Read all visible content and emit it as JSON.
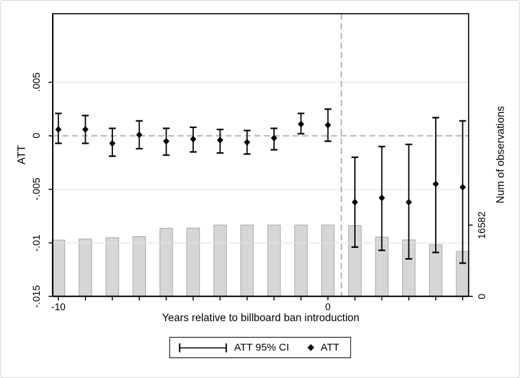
{
  "chart_data": {
    "type": "combo",
    "title": "",
    "xlabel": "Years relative to billboard ban introduction",
    "ylabel_left": "ATT",
    "ylabel_right": "Num of observations",
    "x": [
      -10,
      -9,
      -8,
      -7,
      -6,
      -5,
      -4,
      -3,
      -2,
      -1,
      0,
      1,
      2,
      3,
      4,
      5
    ],
    "series": [
      {
        "name": "ATT",
        "type": "scatter",
        "marker": "diamond",
        "axis": "left",
        "values": [
          0.0006,
          0.0006,
          -0.0007,
          0.0001,
          -0.0005,
          -0.0003,
          -0.0004,
          -0.0006,
          -0.0002,
          0.0011,
          0.001,
          -0.0062,
          -0.0058,
          -0.0062,
          -0.0045,
          -0.0048
        ]
      },
      {
        "name": "ATT 95% CI",
        "type": "errorbar",
        "axis": "left",
        "low": [
          -0.0007,
          -0.0007,
          -0.0019,
          -0.0012,
          -0.0018,
          -0.0015,
          -0.0016,
          -0.0017,
          -0.0013,
          0.0002,
          -0.0005,
          -0.0104,
          -0.0107,
          -0.0115,
          -0.0109,
          -0.0119
        ],
        "high": [
          0.0021,
          0.0019,
          0.0007,
          0.0014,
          0.0007,
          0.0008,
          0.0006,
          0.0005,
          0.0007,
          0.0021,
          0.0025,
          -0.002,
          -0.001,
          -0.0008,
          0.0017,
          0.0014
        ]
      },
      {
        "name": "Num of observations",
        "type": "bar",
        "axis": "right",
        "values": [
          13100,
          13350,
          13650,
          13900,
          15850,
          15900,
          16582,
          16582,
          16582,
          16582,
          16582,
          16450,
          13800,
          13150,
          12050,
          10450
        ]
      }
    ],
    "reference_lines": {
      "horizontal_att": 0,
      "vertical_year": 0.5
    },
    "axes": {
      "left": {
        "lim": [
          -0.015,
          0.01142
        ],
        "ticks": [
          {
            "value": 0.005,
            "label": ".005"
          },
          {
            "value": 0,
            "label": "0"
          },
          {
            "value": -0.005,
            "label": "-.005"
          },
          {
            "value": -0.01,
            "label": "-.01"
          },
          {
            "value": -0.015,
            "label": "-.015"
          }
        ],
        "gridline_values": [
          0.005,
          -0.005,
          -0.01
        ]
      },
      "right": {
        "lim": [
          0,
          65800
        ],
        "ticks": [
          {
            "value": 16582,
            "label": "16582"
          },
          {
            "value": 0,
            "label": "0"
          }
        ]
      },
      "x": {
        "lim": [
          -10.21,
          5.22
        ],
        "tick_values": [
          -10,
          -9,
          -8,
          -7,
          -6,
          -5,
          -4,
          -3,
          -2,
          -1,
          0,
          1,
          2,
          3,
          4,
          5
        ],
        "labeled": [
          {
            "value": -10,
            "label": "-10"
          },
          {
            "value": 0,
            "label": "0"
          }
        ]
      }
    },
    "legend": [
      {
        "icon": "error-bar",
        "label": "ATT 95% CI"
      },
      {
        "icon": "diamond",
        "label": "ATT"
      }
    ],
    "grid": true,
    "legend_position": "bottom-center",
    "colors": {
      "bar_fill": "#d6d6d6",
      "bar_stroke": "#a8a8a8",
      "grid": "#e4e4e4",
      "ref_dash": "#ababab",
      "marker": "#000000",
      "frame": "#000000"
    }
  }
}
